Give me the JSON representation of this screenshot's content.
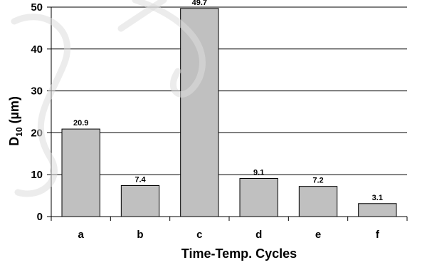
{
  "chart_data": {
    "type": "bar",
    "categories": [
      "a",
      "b",
      "c",
      "d",
      "e",
      "f"
    ],
    "values": [
      20.9,
      7.4,
      49.7,
      9.1,
      7.2,
      3.1
    ],
    "data_labels": [
      "20.9",
      "7.4",
      "49.7",
      "9.1",
      "7.2",
      "3.1"
    ],
    "xlabel": "Time-Temp. Cycles",
    "ylabel_main": "D",
    "ylabel_sub": "10",
    "ylabel_units": " (µm)",
    "ylim": [
      0,
      50
    ],
    "yticks": [
      0,
      10,
      20,
      30,
      40,
      50
    ],
    "grid": true,
    "bar_color": "#c0c0c0",
    "bar_edge_color": "#000000",
    "grid_color": "#000000"
  }
}
